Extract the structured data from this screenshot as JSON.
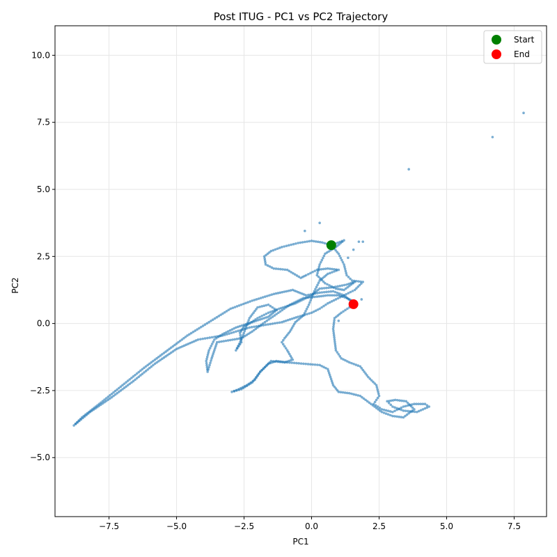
{
  "chart_data": {
    "type": "scatter",
    "title": "Post ITUG - PC1 vs PC2 Trajectory",
    "xlabel": "PC1",
    "ylabel": "PC2",
    "xlim": [
      -9.5,
      8.7
    ],
    "ylim": [
      -7.2,
      11.1
    ],
    "xticks": [
      -7.5,
      -5.0,
      -2.5,
      0.0,
      2.5,
      5.0,
      7.5
    ],
    "yticks": [
      -5.0,
      -2.5,
      0.0,
      2.5,
      5.0,
      7.5,
      10.0
    ],
    "xtick_labels": [
      "−7.5",
      "−5.0",
      "−2.5",
      "0.0",
      "2.5",
      "5.0",
      "7.5"
    ],
    "ytick_labels": [
      "−5.0",
      "−2.5",
      "0.0",
      "2.5",
      "5.0",
      "7.5",
      "10.0"
    ],
    "grid": true,
    "legend_position": "top-right",
    "colors": {
      "trajectory": "#1f77b4",
      "start": "#008000",
      "end": "#ff0000"
    },
    "legend": [
      {
        "label": "Start",
        "color": "#008000"
      },
      {
        "label": "End",
        "color": "#ff0000"
      }
    ],
    "start": {
      "x": 0.73,
      "y": 2.92
    },
    "end": {
      "x": 1.55,
      "y": 0.72
    },
    "trajectory_path": [
      [
        0.73,
        2.92
      ],
      [
        1.2,
        3.1
      ],
      [
        0.9,
        2.85
      ],
      [
        0.5,
        2.6
      ],
      [
        0.3,
        2.2
      ],
      [
        0.2,
        1.8
      ],
      [
        0.5,
        1.5
      ],
      [
        0.9,
        1.3
      ],
      [
        1.2,
        1.25
      ],
      [
        1.6,
        1.55
      ],
      [
        1.3,
        1.45
      ],
      [
        0.8,
        1.35
      ],
      [
        0.3,
        1.3
      ],
      [
        0.0,
        1.05
      ],
      [
        -0.3,
        0.9
      ],
      [
        -0.6,
        0.75
      ],
      [
        -0.9,
        0.65
      ],
      [
        -1.2,
        0.55
      ],
      [
        -1.6,
        0.4
      ],
      [
        -2.0,
        0.2
      ],
      [
        -2.3,
        0.0
      ],
      [
        -2.5,
        -0.1
      ],
      [
        -2.65,
        -0.35
      ],
      [
        -2.6,
        -0.7
      ],
      [
        -2.8,
        -1.0
      ],
      [
        -2.6,
        -0.6
      ],
      [
        -2.3,
        0.2
      ],
      [
        -2.0,
        0.6
      ],
      [
        -1.6,
        0.7
      ],
      [
        -1.3,
        0.5
      ],
      [
        -1.6,
        0.25
      ],
      [
        -2.2,
        0.05
      ],
      [
        -2.8,
        -0.15
      ],
      [
        -3.3,
        -0.4
      ],
      [
        -3.6,
        -0.6
      ],
      [
        -3.8,
        -1.0
      ],
      [
        -3.9,
        -1.4
      ],
      [
        -3.85,
        -1.8
      ],
      [
        -3.7,
        -1.3
      ],
      [
        -3.5,
        -0.7
      ],
      [
        -2.6,
        -0.55
      ],
      [
        -2.2,
        -0.3
      ],
      [
        -1.8,
        0.0
      ],
      [
        -1.3,
        0.35
      ],
      [
        -0.8,
        0.7
      ],
      [
        -0.3,
        0.95
      ],
      [
        0.2,
        1.0
      ],
      [
        0.6,
        1.05
      ],
      [
        1.0,
        1.05
      ],
      [
        1.3,
        0.95
      ],
      [
        1.5,
        0.85
      ],
      [
        1.6,
        0.75
      ],
      [
        1.4,
        0.6
      ],
      [
        1.1,
        0.4
      ],
      [
        0.85,
        0.2
      ],
      [
        0.8,
        -0.2
      ],
      [
        0.85,
        -0.6
      ],
      [
        0.9,
        -1.0
      ],
      [
        1.1,
        -1.3
      ],
      [
        1.4,
        -1.45
      ],
      [
        1.8,
        -1.6
      ],
      [
        2.1,
        -2.0
      ],
      [
        2.4,
        -2.3
      ],
      [
        2.5,
        -2.7
      ],
      [
        2.3,
        -3.0
      ],
      [
        2.6,
        -3.2
      ],
      [
        3.0,
        -3.3
      ],
      [
        3.4,
        -3.1
      ],
      [
        3.8,
        -3.0
      ],
      [
        4.2,
        -3.0
      ],
      [
        4.35,
        -3.1
      ],
      [
        3.9,
        -3.3
      ],
      [
        3.4,
        -3.25
      ],
      [
        3.0,
        -3.1
      ],
      [
        2.8,
        -2.9
      ],
      [
        3.1,
        -2.85
      ],
      [
        3.5,
        -2.9
      ],
      [
        3.8,
        -3.2
      ],
      [
        3.4,
        -3.5
      ],
      [
        3.0,
        -3.45
      ],
      [
        2.6,
        -3.3
      ],
      [
        2.2,
        -3.0
      ],
      [
        1.8,
        -2.7
      ],
      [
        1.4,
        -2.6
      ],
      [
        1.0,
        -2.55
      ],
      [
        0.8,
        -2.3
      ],
      [
        0.6,
        -1.7
      ],
      [
        0.3,
        -1.55
      ],
      [
        -0.3,
        -1.5
      ],
      [
        -0.9,
        -1.45
      ],
      [
        -1.3,
        -1.4
      ],
      [
        -1.6,
        -1.5
      ],
      [
        -1.9,
        -1.8
      ],
      [
        -2.1,
        -2.1
      ],
      [
        -2.4,
        -2.3
      ],
      [
        -2.7,
        -2.45
      ],
      [
        -2.95,
        -2.55
      ],
      [
        -2.6,
        -2.45
      ],
      [
        -2.2,
        -2.2
      ],
      [
        -1.9,
        -1.8
      ],
      [
        -1.5,
        -1.4
      ],
      [
        -1.0,
        -1.45
      ],
      [
        -0.7,
        -1.35
      ],
      [
        -0.9,
        -1.0
      ],
      [
        -1.1,
        -0.7
      ],
      [
        -1.0,
        -0.55
      ],
      [
        -0.8,
        -0.3
      ],
      [
        -0.6,
        0.05
      ],
      [
        -0.3,
        0.3
      ],
      [
        -0.1,
        0.7
      ],
      [
        0.1,
        1.2
      ],
      [
        0.3,
        1.6
      ],
      [
        0.6,
        1.85
      ],
      [
        1.0,
        2.0
      ],
      [
        0.6,
        2.05
      ],
      [
        0.2,
        2.0
      ],
      [
        -0.2,
        1.8
      ],
      [
        -0.4,
        1.7
      ],
      [
        -0.9,
        2.0
      ],
      [
        -1.4,
        2.05
      ],
      [
        -1.7,
        2.2
      ],
      [
        -1.75,
        2.5
      ],
      [
        -1.5,
        2.7
      ],
      [
        -1.1,
        2.85
      ],
      [
        -0.5,
        3.0
      ],
      [
        0.0,
        3.08
      ],
      [
        0.4,
        3.02
      ],
      [
        0.73,
        2.92
      ],
      [
        1.0,
        2.6
      ],
      [
        1.2,
        2.2
      ],
      [
        1.3,
        1.8
      ],
      [
        1.5,
        1.6
      ],
      [
        1.9,
        1.55
      ],
      [
        1.6,
        1.25
      ],
      [
        1.2,
        1.05
      ],
      [
        0.9,
        0.9
      ],
      [
        0.6,
        0.75
      ],
      [
        0.3,
        0.55
      ],
      [
        0.0,
        0.4
      ],
      [
        -0.5,
        0.25
      ],
      [
        -1.1,
        0.05
      ],
      [
        -1.7,
        -0.05
      ],
      [
        -2.3,
        -0.15
      ],
      [
        -2.8,
        -0.3
      ],
      [
        -3.3,
        -0.45
      ],
      [
        -3.6,
        -0.5
      ],
      [
        -4.2,
        -0.6
      ],
      [
        -5.0,
        -0.95
      ],
      [
        -5.8,
        -1.5
      ],
      [
        -6.6,
        -2.15
      ],
      [
        -7.4,
        -2.75
      ],
      [
        -8.2,
        -3.3
      ],
      [
        -8.8,
        -3.8
      ],
      [
        -8.5,
        -3.5
      ],
      [
        -7.8,
        -2.95
      ],
      [
        -7.0,
        -2.3
      ],
      [
        -6.2,
        -1.65
      ],
      [
        -5.4,
        -1.05
      ],
      [
        -4.6,
        -0.45
      ],
      [
        -3.8,
        0.05
      ],
      [
        -3.0,
        0.55
      ],
      [
        -2.2,
        0.85
      ],
      [
        -1.4,
        1.1
      ],
      [
        -0.7,
        1.25
      ],
      [
        -0.2,
        1.05
      ],
      [
        0.3,
        1.15
      ],
      [
        0.8,
        1.2
      ],
      [
        1.2,
        1.05
      ],
      [
        1.5,
        0.8
      ],
      [
        1.55,
        0.72
      ]
    ],
    "scattered_points": [
      {
        "x": 3.6,
        "y": 5.75
      },
      {
        "x": 6.7,
        "y": 6.95
      },
      {
        "x": 7.85,
        "y": 7.85
      },
      {
        "x": 0.3,
        "y": 3.75
      },
      {
        "x": -0.25,
        "y": 3.45
      },
      {
        "x": 1.9,
        "y": 3.05
      },
      {
        "x": 1.75,
        "y": 3.05
      },
      {
        "x": 1.55,
        "y": 2.75
      },
      {
        "x": 1.35,
        "y": 2.45
      },
      {
        "x": 1.85,
        "y": 0.9
      },
      {
        "x": 1.0,
        "y": 0.1
      }
    ]
  }
}
